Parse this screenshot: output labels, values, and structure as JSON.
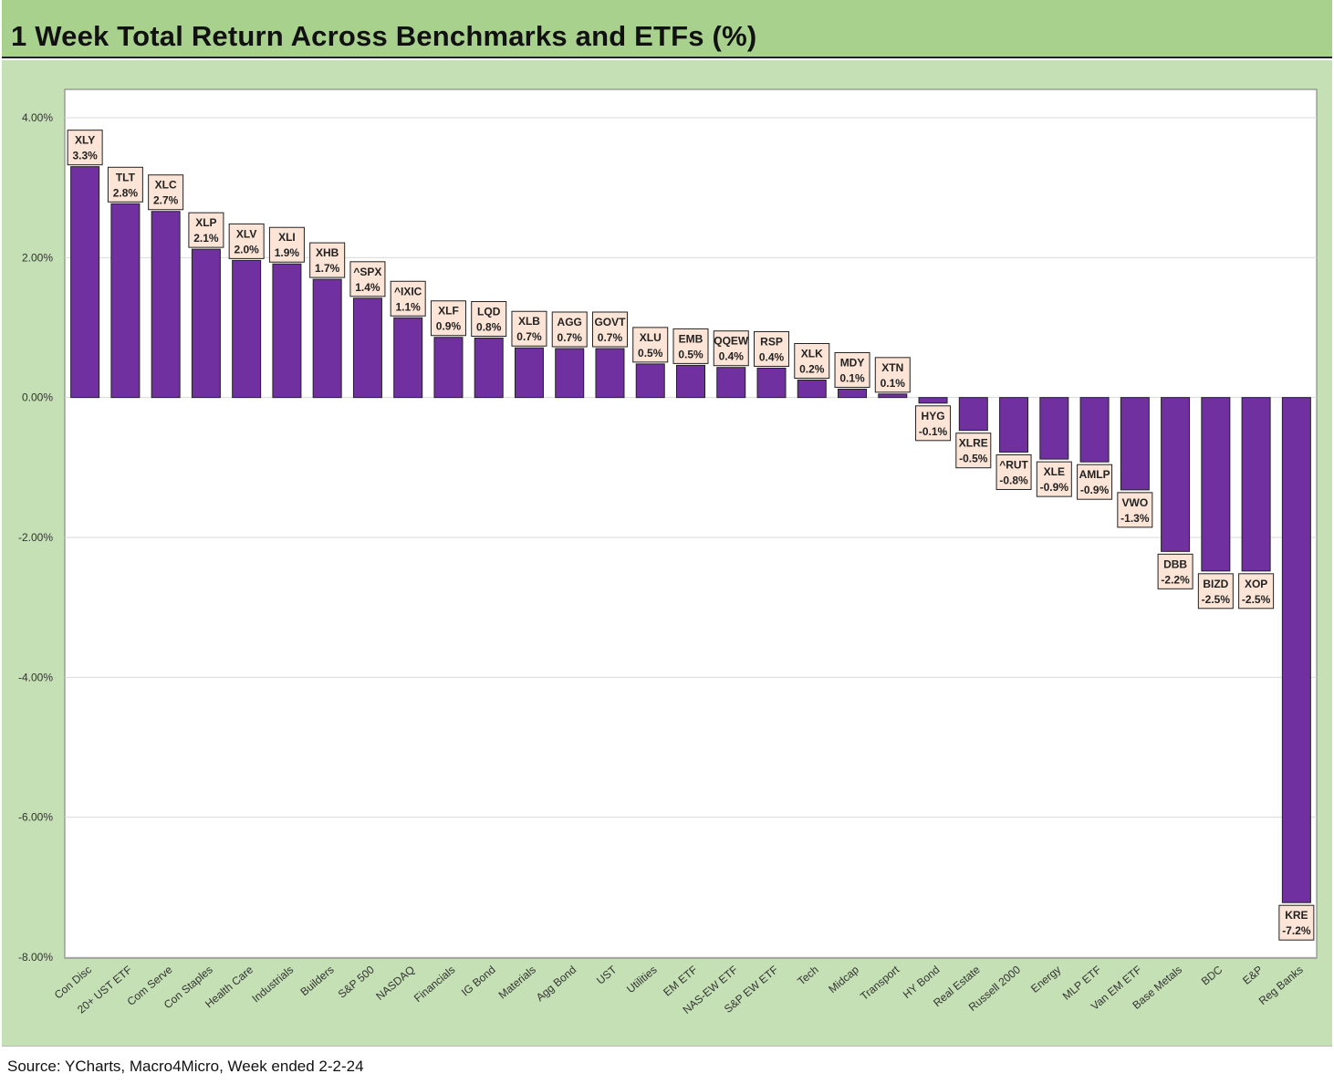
{
  "header": {
    "title": "1 Week Total Return Across Benchmarks and ETFs (%)"
  },
  "footer": {
    "source": "Source: YCharts, Macro4Micro, Week ended 2-2-24"
  },
  "colors": {
    "title_bg": "#a9d18e",
    "chart_bg": "#c5e0b4",
    "bar": "#7030a0",
    "label_bg": "#fce4d6"
  },
  "chart_data": {
    "type": "bar",
    "title": "1 Week Total Return Across Benchmarks and ETFs (%)",
    "xlabel": "",
    "ylabel": "",
    "ylim": [
      -8,
      4
    ],
    "yticks": [
      4,
      2,
      0,
      -2,
      -4,
      -6,
      -8
    ],
    "ytick_labels": [
      "4.00%",
      "2.00%",
      "0.00%",
      "-2.00%",
      "-4.00%",
      "-6.00%",
      "-8.00%"
    ],
    "grid": true,
    "categories": [
      "Con Disc",
      "20+ UST ETF",
      "Com Serve",
      "Con Staples",
      "Health Care",
      "Industrials",
      "Builders",
      "S&P 500",
      "NASDAQ",
      "Financials",
      "IG Bond",
      "Materials",
      "Agg Bond",
      "UST",
      "Utilities",
      "EM ETF",
      "NAS-EW ETF",
      "S&P EW ETF",
      "Tech",
      "Midcap",
      "Transport",
      "HY Bond",
      "Real Estate",
      "Russell 2000",
      "Energy",
      "MLP ETF",
      "Van EM ETF",
      "Base Metals",
      "BDC",
      "E&P",
      "Reg Banks"
    ],
    "tickers": [
      "XLY",
      "TLT",
      "XLC",
      "XLP",
      "XLV",
      "XLI",
      "XHB",
      "^SPX",
      "^IXIC",
      "XLF",
      "LQD",
      "XLB",
      "AGG",
      "GOVT",
      "XLU",
      "EMB",
      "QQEW",
      "RSP",
      "XLK",
      "MDY",
      "XTN",
      "HYG",
      "XLRE",
      "^RUT",
      "XLE",
      "AMLP",
      "VWO",
      "DBB",
      "BIZD",
      "XOP",
      "KRE"
    ],
    "values": [
      3.3,
      2.77,
      2.66,
      2.12,
      1.96,
      1.91,
      1.69,
      1.42,
      1.14,
      0.86,
      0.85,
      0.71,
      0.7,
      0.7,
      0.48,
      0.46,
      0.43,
      0.42,
      0.25,
      0.12,
      0.05,
      -0.08,
      -0.47,
      -0.78,
      -0.88,
      -0.92,
      -1.32,
      -2.2,
      -2.48,
      -2.48,
      -7.22
    ],
    "value_labels": [
      "3.3%",
      "2.8%",
      "2.7%",
      "2.1%",
      "2.0%",
      "1.9%",
      "1.7%",
      "1.4%",
      "1.1%",
      "0.9%",
      "0.8%",
      "0.7%",
      "0.7%",
      "0.7%",
      "0.5%",
      "0.5%",
      "0.4%",
      "0.4%",
      "0.2%",
      "0.1%",
      "0.1%",
      "-0.1%",
      "-0.5%",
      "-0.8%",
      "-0.9%",
      "-0.9%",
      "-1.3%",
      "-2.2%",
      "-2.5%",
      "-2.5%",
      "-7.2%"
    ]
  }
}
